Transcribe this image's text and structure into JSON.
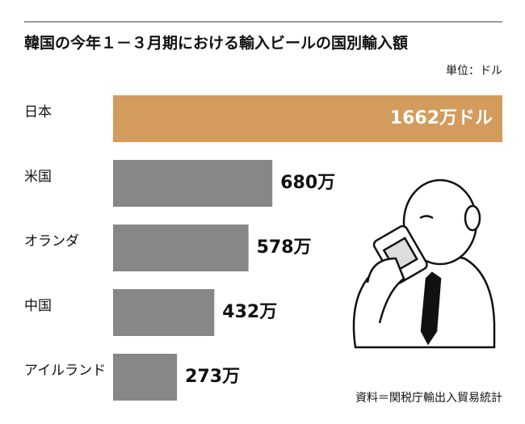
{
  "chart_data": {
    "type": "bar",
    "orientation": "horizontal",
    "title": "韓国の今年１－３月期における輸入ビールの国別輸入額",
    "unit_note": "単位：ドル",
    "source": "資料＝関税庁輸出入貿易統計",
    "categories": [
      "日本",
      "米国",
      "オランダ",
      "中国",
      "アイルランド"
    ],
    "values": [
      1662,
      680,
      578,
      432,
      273
    ],
    "value_labels": [
      "1662万ドル",
      "680万",
      "578万",
      "432万",
      "273万"
    ],
    "colors": [
      "#d39b5c",
      "#878787",
      "#878787",
      "#878787",
      "#878787"
    ]
  }
}
